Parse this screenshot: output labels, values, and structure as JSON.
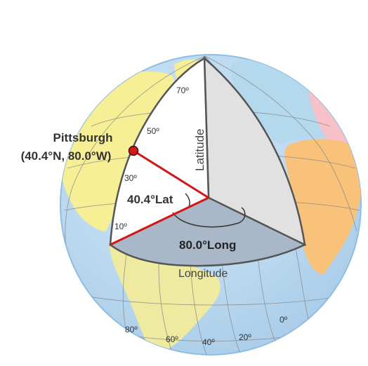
{
  "colors": {
    "ocean": "#b9d9f0",
    "ocean_edge": "#7fb2dc",
    "north_america": "#f6ef96",
    "south_america": "#eeeaa0",
    "europe": "#b4d8ec",
    "africa": "#f8c27a",
    "middle_east": "#f8c0c8",
    "wedge_lat_face": "#ffffff",
    "wedge_side_face": "#e1e1e1",
    "equator_face": "#a8b8c8",
    "wedge_outline": "#555555",
    "radius_line": "#d01818",
    "city_dot": "#d81818",
    "grid": "#8a8a8a",
    "label_text": "#333333"
  },
  "city": {
    "name": "Pittsburgh",
    "coords": "(40.4°N, 80.0°W)"
  },
  "wedge": {
    "latitude_axis_label": "Latitude",
    "longitude_arc_label": "Longitude",
    "latitude_angle_label": "40.4°Lat",
    "longitude_angle_label": "80.0°Long"
  },
  "latitude_ticks": [
    "70º",
    "50º",
    "30º",
    "10º"
  ],
  "longitude_ticks": [
    "80º",
    "60º",
    "40º",
    "20º",
    "0º"
  ]
}
